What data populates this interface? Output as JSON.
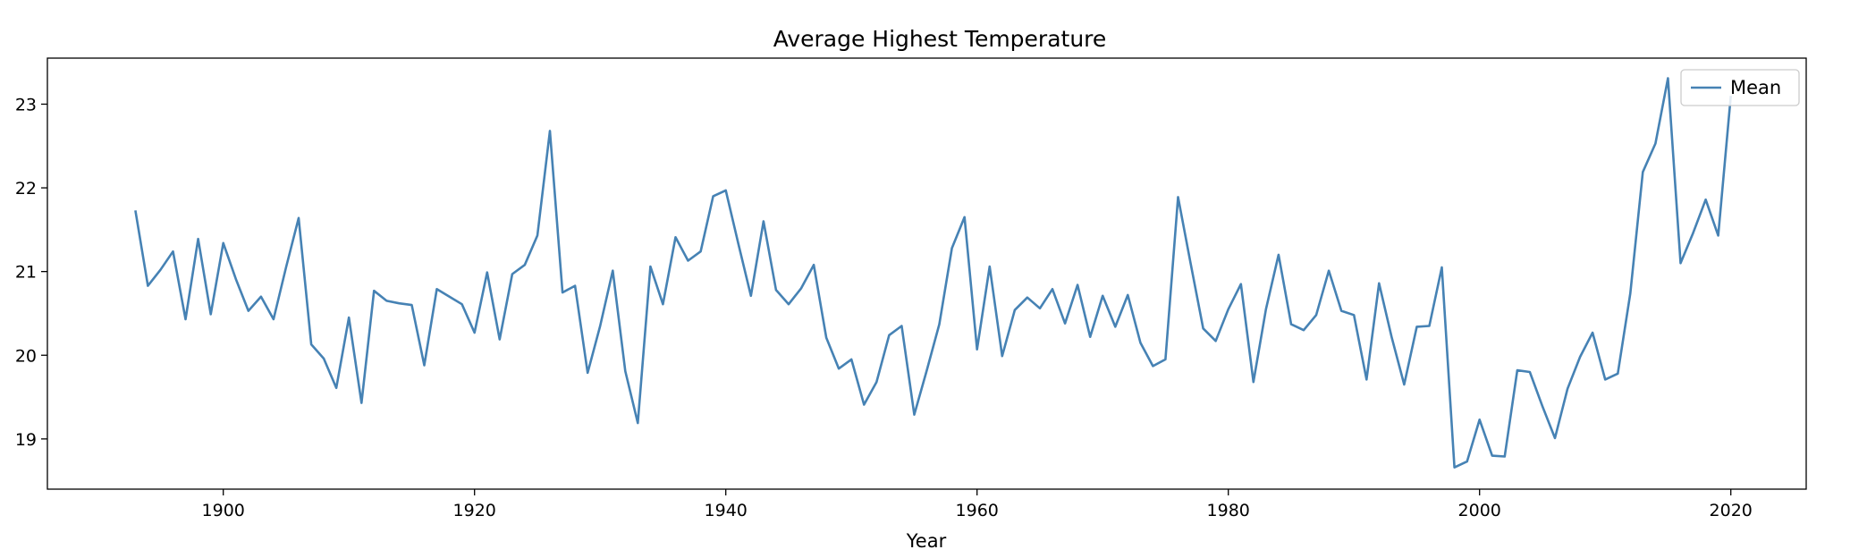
{
  "chart_data": {
    "type": "line",
    "title": "Average Highest Temperature",
    "xlabel": "Year",
    "ylabel": "",
    "xlim": [
      1886,
      2026
    ],
    "ylim": [
      18.4,
      23.55
    ],
    "xticks": [
      1900,
      1920,
      1940,
      1960,
      1980,
      2000,
      2020
    ],
    "yticks": [
      19,
      20,
      21,
      22,
      23
    ],
    "grid": false,
    "legend_position": "top-right",
    "line_color": "#4682b4",
    "series": [
      {
        "name": "Mean",
        "x": [
          1893,
          1894,
          1895,
          1896,
          1897,
          1898,
          1899,
          1900,
          1901,
          1902,
          1903,
          1904,
          1905,
          1906,
          1907,
          1908,
          1909,
          1910,
          1911,
          1912,
          1913,
          1914,
          1915,
          1916,
          1917,
          1918,
          1919,
          1920,
          1921,
          1922,
          1923,
          1924,
          1925,
          1926,
          1927,
          1928,
          1929,
          1930,
          1931,
          1932,
          1933,
          1934,
          1935,
          1936,
          1937,
          1938,
          1939,
          1940,
          1941,
          1942,
          1943,
          1944,
          1945,
          1946,
          1947,
          1948,
          1949,
          1950,
          1951,
          1952,
          1953,
          1954,
          1955,
          1956,
          1957,
          1958,
          1959,
          1960,
          1961,
          1962,
          1963,
          1964,
          1965,
          1966,
          1967,
          1968,
          1969,
          1970,
          1971,
          1972,
          1973,
          1974,
          1975,
          1976,
          1977,
          1978,
          1979,
          1980,
          1981,
          1982,
          1983,
          1984,
          1985,
          1986,
          1987,
          1988,
          1989,
          1990,
          1991,
          1992,
          1993,
          1994,
          1995,
          1996,
          1997,
          1998,
          1999,
          2000,
          2001,
          2002,
          2003,
          2004,
          2005,
          2006,
          2007,
          2008,
          2009,
          2010,
          2011,
          2012,
          2013,
          2014,
          2015,
          2016,
          2017,
          2018,
          2019,
          2020
        ],
        "values": [
          21.73,
          20.83,
          21.02,
          21.24,
          20.43,
          21.39,
          20.49,
          21.34,
          20.91,
          20.53,
          20.7,
          20.43,
          21.05,
          21.64,
          20.13,
          19.96,
          19.61,
          20.45,
          19.43,
          20.77,
          20.65,
          20.62,
          20.6,
          19.88,
          20.79,
          20.7,
          20.61,
          20.27,
          20.99,
          20.19,
          20.97,
          21.08,
          21.43,
          22.68,
          20.75,
          20.83,
          19.79,
          20.35,
          21.01,
          19.81,
          19.19,
          21.06,
          20.61,
          21.41,
          21.13,
          21.24,
          21.9,
          21.97,
          21.33,
          20.71,
          21.6,
          20.78,
          20.61,
          20.8,
          21.08,
          20.21,
          19.84,
          19.95,
          19.41,
          19.68,
          20.24,
          20.35,
          19.29,
          19.82,
          20.37,
          21.28,
          21.65,
          20.07,
          21.06,
          19.99,
          20.54,
          20.69,
          20.56,
          20.79,
          20.38,
          20.84,
          20.22,
          20.71,
          20.34,
          20.72,
          20.15,
          19.87,
          19.95,
          21.89,
          21.1,
          20.32,
          20.17,
          20.55,
          20.85,
          19.68,
          20.55,
          21.2,
          20.37,
          20.3,
          20.48,
          21.01,
          20.53,
          20.48,
          19.71,
          20.86,
          20.22,
          19.65,
          20.34,
          20.35,
          21.05,
          18.66,
          18.73,
          19.23,
          18.8,
          18.79,
          19.82,
          19.8,
          19.39,
          19.01,
          19.6,
          19.98,
          20.27,
          19.71,
          19.78,
          20.74,
          22.19,
          22.53,
          23.31,
          21.1,
          21.46,
          21.86,
          21.43,
          23.1
        ]
      }
    ]
  }
}
